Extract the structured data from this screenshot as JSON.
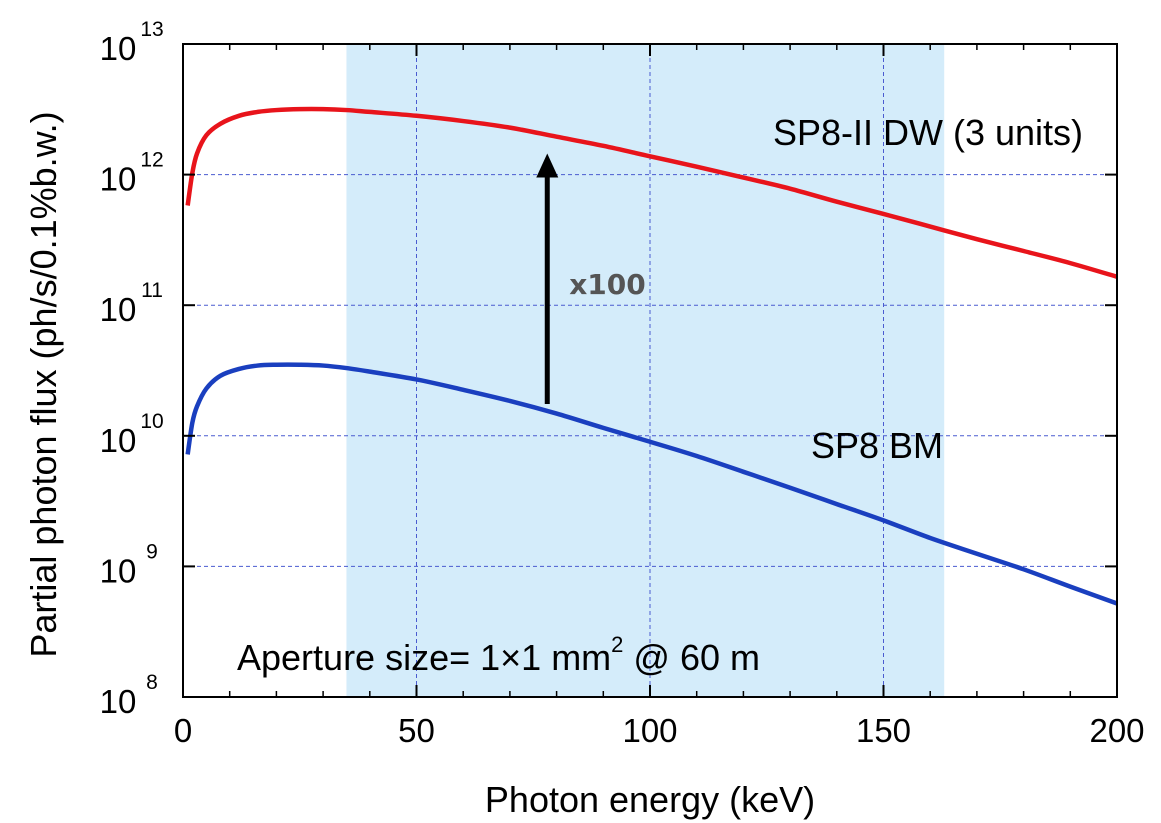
{
  "chart_data": {
    "type": "line",
    "xlabel": "Photon energy (keV)",
    "ylabel": "Partial photon flux (ph/s/0.1%b.w.)",
    "xlim": [
      0,
      200
    ],
    "ylim": [
      100000000,
      10000000000000
    ],
    "yscale": "log",
    "grid": "dashed, horizontal and vertical",
    "x_ticks": [
      "0",
      "50",
      "100",
      "150",
      "200"
    ],
    "y_ticks": [
      {
        "base": "10",
        "exp": "8"
      },
      {
        "base": "10",
        "exp": "9"
      },
      {
        "base": "10",
        "exp": "10"
      },
      {
        "base": "10",
        "exp": "11"
      },
      {
        "base": "10",
        "exp": "12"
      },
      {
        "base": "10",
        "exp": "13"
      }
    ],
    "highlight_band": {
      "x_start": 35,
      "x_end": 163,
      "color": "#d4ecfa"
    },
    "series": [
      {
        "name": "SP8-II DW (3 units)",
        "color": "#e8141b",
        "points": [
          [
            1,
            580000000000
          ],
          [
            2,
            1030000000000
          ],
          [
            3,
            1450000000000
          ],
          [
            5,
            2000000000000
          ],
          [
            8,
            2450000000000
          ],
          [
            12,
            2820000000000
          ],
          [
            16,
            3020000000000
          ],
          [
            20,
            3120000000000
          ],
          [
            25,
            3170000000000
          ],
          [
            30,
            3170000000000
          ],
          [
            35,
            3120000000000
          ],
          [
            40,
            3020000000000
          ],
          [
            50,
            2820000000000
          ],
          [
            60,
            2570000000000
          ],
          [
            70,
            2290000000000
          ],
          [
            80,
            1950000000000
          ],
          [
            90,
            1660000000000
          ],
          [
            100,
            1380000000000
          ],
          [
            110,
            1150000000000
          ],
          [
            120,
            950000000000
          ],
          [
            130,
            780000000000
          ],
          [
            140,
            620000000000
          ],
          [
            150,
            500000000000
          ],
          [
            160,
            400000000000
          ],
          [
            170,
            320000000000
          ],
          [
            180,
            260000000000
          ],
          [
            190,
            210000000000
          ],
          [
            200,
            165000000000
          ]
        ]
      },
      {
        "name": "SP8 BM",
        "color": "#1a3fbf",
        "points": [
          [
            1,
            7200000000
          ],
          [
            2,
            12600000000
          ],
          [
            3,
            16800000000
          ],
          [
            5,
            23000000000
          ],
          [
            8,
            28800000000
          ],
          [
            12,
            32500000000
          ],
          [
            16,
            34500000000
          ],
          [
            20,
            35000000000
          ],
          [
            25,
            35000000000
          ],
          [
            30,
            34500000000
          ],
          [
            35,
            33000000000
          ],
          [
            40,
            31000000000
          ],
          [
            50,
            27000000000
          ],
          [
            60,
            22500000000
          ],
          [
            70,
            18500000000
          ],
          [
            80,
            14800000000
          ],
          [
            90,
            11500000000
          ],
          [
            100,
            9000000000
          ],
          [
            110,
            7000000000
          ],
          [
            120,
            5300000000
          ],
          [
            130,
            4000000000
          ],
          [
            140,
            3000000000
          ],
          [
            150,
            2250000000
          ],
          [
            160,
            1650000000
          ],
          [
            170,
            1250000000
          ],
          [
            180,
            950000000
          ],
          [
            190,
            700000000
          ],
          [
            200,
            520000000
          ]
        ]
      }
    ],
    "annotations": {
      "arrow_label": "x100",
      "arrow": {
        "x": 78,
        "y_from": 17500000000,
        "y_to": 1450000000000
      },
      "aperture_text_main": "Aperture size= 1×1 mm",
      "aperture_text_sup": "2",
      "aperture_text_tail": " @ 60 m"
    }
  }
}
